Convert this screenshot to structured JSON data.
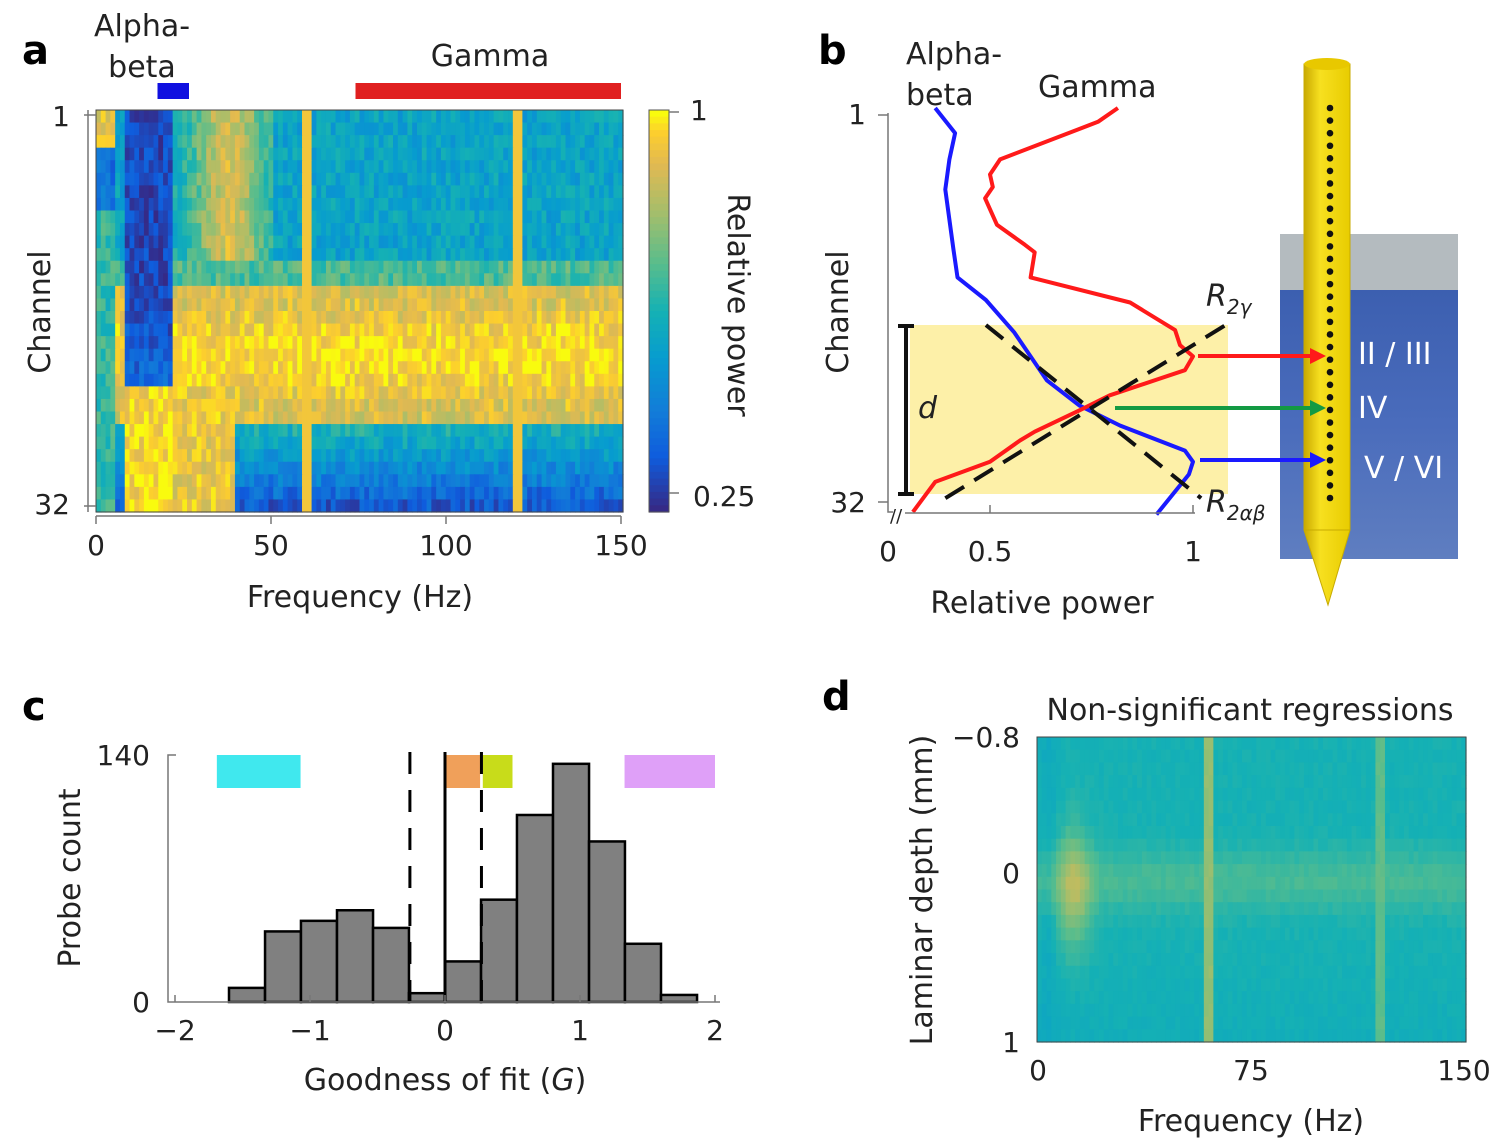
{
  "panels": {
    "a": {
      "letter": "a",
      "type": "heatmap",
      "band_labels": {
        "alpha_beta": "Alpha-\nbeta",
        "gamma": "Gamma"
      },
      "band_colors": {
        "alpha_beta": "#1010e0",
        "gamma": "#e02020"
      },
      "band_ranges_hz": {
        "alpha_beta": [
          9,
          18
        ],
        "gamma": [
          75,
          150
        ]
      },
      "xlabel": "Frequency (Hz)",
      "ylabel": "Channel",
      "xticks": [
        "0",
        "50",
        "100",
        "150"
      ],
      "xlim": [
        0,
        150
      ],
      "yticks": [
        "1",
        "32"
      ],
      "ylim": [
        1,
        32
      ],
      "colorbar": {
        "label": "Relative power",
        "ticks": [
          "1",
          "0.25"
        ],
        "range": [
          0.25,
          1
        ],
        "colormap": "parula"
      },
      "line_noise_hz": [
        60,
        120
      ]
    },
    "b": {
      "letter": "b",
      "type": "line",
      "xlabel": "Relative power",
      "ylabel": "Channel",
      "xticks": [
        "0",
        "0.5",
        "1"
      ],
      "yticks": [
        "1",
        "32"
      ],
      "ylim": [
        1,
        32
      ],
      "axis_break": true,
      "series": [
        {
          "name": "Alpha-\nbeta",
          "color": "#1a1aff",
          "power": [
            0.365,
            0.414,
            0.4,
            0.39,
            0.4,
            0.41,
            0.42,
            0.49,
            0.56,
            0.64,
            0.72,
            0.82,
            0.98,
            1.0,
            0.99,
            0.91
          ],
          "channel": [
            0.6,
            2.6,
            4.7,
            7.1,
            9.5,
            11.9,
            14.1,
            15.9,
            18.5,
            22.3,
            24.3,
            25.9,
            27.9,
            28.8,
            29.8,
            33
          ]
        },
        {
          "name": "Gamma",
          "color": "#ff1a1a",
          "power": [
            0.815,
            0.766,
            0.525,
            0.5,
            0.507,
            0.488,
            0.517,
            0.586,
            0.61,
            0.6,
            0.845,
            0.956,
            0.968,
            1.0,
            0.98,
            0.795,
            0.72,
            0.61,
            0.574,
            0.5,
            0.365,
            0.31
          ],
          "channel": [
            0.6,
            1.7,
            4.7,
            5.9,
            6.9,
            7.8,
            9.9,
            11.5,
            12.1,
            14.1,
            16.1,
            18.3,
            19.5,
            20.4,
            21.5,
            23.5,
            24.7,
            26.4,
            27.1,
            28.8,
            30.4,
            32.8
          ]
        }
      ],
      "regressions": [
        {
          "main": "R",
          "sub": "2γ",
          "from": [
            0.39,
            31.7
          ],
          "to": [
            1.08,
            17.9
          ]
        },
        {
          "main": "R",
          "sub": "2αβ",
          "from": [
            0.49,
            17.9
          ],
          "to": [
            1.02,
            31.7
          ]
        }
      ],
      "window": {
        "label": "d",
        "channel_range": [
          17.9,
          31.8
        ],
        "color": "#fdf0a8"
      },
      "probe": {
        "color": "#f2d600",
        "contacts": 32,
        "layers": [
          "II / III",
          "IV",
          "V / VI"
        ],
        "arrow_colors": [
          "#ff1a1a",
          "#139a43",
          "#1a1aff"
        ]
      }
    },
    "c": {
      "letter": "c",
      "type": "bar",
      "xlabel": "Goodness of fit (",
      "xlabel_italic": "G",
      "xlabel_end": ")",
      "ylabel": "Probe count",
      "xticks": [
        "-2",
        "-1",
        "0",
        "1",
        "2"
      ],
      "xlim": [
        -2,
        2
      ],
      "yticks": [
        "0",
        "140"
      ],
      "ylim": [
        0,
        140
      ],
      "bin_edges": [
        -1.6,
        -1.333,
        -1.067,
        -0.8,
        -0.533,
        -0.267,
        0,
        0.267,
        0.533,
        0.8,
        1.067,
        1.333,
        1.6,
        1.867
      ],
      "counts": [
        8,
        40,
        46,
        52,
        42,
        5,
        23,
        58,
        106,
        135,
        91,
        33,
        4
      ],
      "bar_color": "#808080",
      "threshold_lines": {
        "dashed": [
          -0.26,
          0.27
        ],
        "solid": [
          0
        ]
      },
      "category_bars": [
        {
          "range": [
            -1.69,
            -1.07
          ],
          "color": "#40e8ee"
        },
        {
          "range": [
            0.0,
            0.26
          ],
          "color": "#f0a05a"
        },
        {
          "range": [
            0.28,
            0.5
          ],
          "color": "#c8dc1a"
        },
        {
          "range": [
            1.33,
            2.0
          ],
          "color": "#dfa0f8"
        }
      ]
    },
    "d": {
      "letter": "d",
      "type": "heatmap",
      "title": "Non-significant regressions",
      "xlabel": "Frequency (Hz)",
      "ylabel": "Laminar depth (mm)",
      "xticks": [
        "0",
        "75",
        "150"
      ],
      "xlim": [
        0,
        150
      ],
      "yticks": [
        "−0.8",
        "0",
        "1"
      ],
      "ylim": [
        -0.8,
        1
      ],
      "colormap": "parula"
    }
  }
}
